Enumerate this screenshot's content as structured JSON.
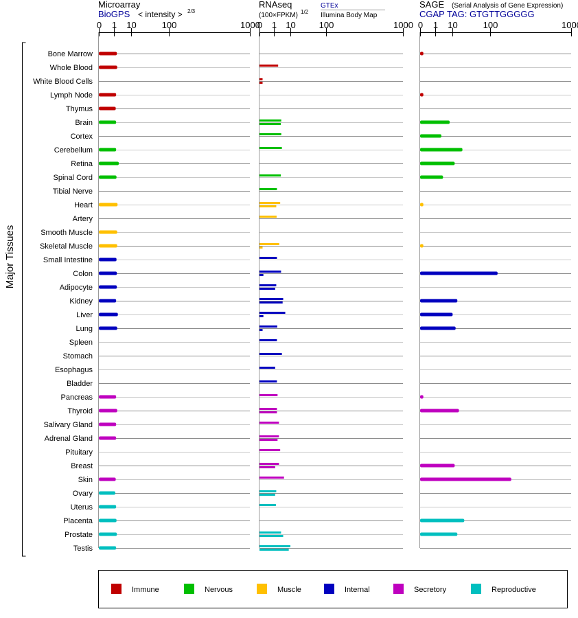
{
  "panels": {
    "microarray": {
      "title": "Microarray",
      "source": "BioGPS",
      "unit_text": "< intensity >",
      "unit_exponent": "2/3",
      "ticks": [
        "0",
        "1",
        "10",
        "100",
        "1000"
      ]
    },
    "rnaseq": {
      "title": "RNAseq",
      "unit_text": "(100×FPKM)",
      "unit_exponent": "1/2",
      "source_1": "GTEx",
      "source_2": "Illumina Body Map",
      "ticks": [
        "0",
        "1",
        "10",
        "100",
        "1000"
      ]
    },
    "sage": {
      "title": "SAGE",
      "subtitle": "(Serial Analysis of Gene Expression)",
      "tag_label": "CGAP TAG: GTGTTGGGGG",
      "ticks": [
        "0",
        "1",
        "10",
        "100",
        "1000"
      ]
    }
  },
  "y_group_label": "Major Tissues",
  "legend": [
    {
      "label": "Immune",
      "color": "#c00000"
    },
    {
      "label": "Nervous",
      "color": "#00bf00"
    },
    {
      "label": "Muscle",
      "color": "#ffc000"
    },
    {
      "label": "Internal",
      "color": "#0000bf"
    },
    {
      "label": "Secretory",
      "color": "#bf00bf"
    },
    {
      "label": "Reproductive",
      "color": "#00bfbf"
    }
  ],
  "chart_data": {
    "type": "bar",
    "orientation": "horizontal",
    "x_scale": "root-scaled (ticks 0, 1, 10, 100, 1000)",
    "categories": [
      "Bone Marrow",
      "Whole Blood",
      "White Blood Cells",
      "Lymph Node",
      "Thymus",
      "Brain",
      "Cortex",
      "Cerebellum",
      "Retina",
      "Spinal Cord",
      "Tibial Nerve",
      "Heart",
      "Artery",
      "Smooth Muscle",
      "Skeletal Muscle",
      "Small Intestine",
      "Colon",
      "Adipocyte",
      "Kidney",
      "Liver",
      "Lung",
      "Spleen",
      "Stomach",
      "Esophagus",
      "Bladder",
      "Pancreas",
      "Thyroid",
      "Salivary Gland",
      "Adrenal Gland",
      "Pituitary",
      "Breast",
      "Skin",
      "Ovary",
      "Uterus",
      "Placenta",
      "Prostate",
      "Testis"
    ],
    "category_groups": [
      "Immune",
      "Immune",
      "Immune",
      "Immune",
      "Immune",
      "Nervous",
      "Nervous",
      "Nervous",
      "Nervous",
      "Nervous",
      "Nervous",
      "Muscle",
      "Muscle",
      "Muscle",
      "Muscle",
      "Internal",
      "Internal",
      "Internal",
      "Internal",
      "Internal",
      "Internal",
      "Internal",
      "Internal",
      "Internal",
      "Internal",
      "Secretory",
      "Secretory",
      "Secretory",
      "Secretory",
      "Secretory",
      "Secretory",
      "Secretory",
      "Reproductive",
      "Reproductive",
      "Reproductive",
      "Reproductive",
      "Reproductive"
    ],
    "microarray": [
      1.7,
      1.8,
      null,
      1.5,
      1.4,
      1.5,
      null,
      1.5,
      2.3,
      1.6,
      null,
      1.9,
      null,
      1.8,
      1.8,
      1.6,
      1.7,
      1.7,
      1.5,
      2.0,
      1.8,
      null,
      null,
      null,
      null,
      1.5,
      1.8,
      1.5,
      1.5,
      null,
      null,
      1.4,
      1.3,
      1.5,
      1.6,
      1.7,
      1.5
    ],
    "rnaseq_gtex": [
      null,
      2.2,
      0.01,
      null,
      null,
      3.5,
      3.5,
      3.8,
      null,
      3.3,
      1.8,
      3.0,
      1.7,
      null,
      2.6,
      1.8,
      3.4,
      1.6,
      4.5,
      5.8,
      1.9,
      1.8,
      3.8,
      1.3,
      1.8,
      2.0,
      1.8,
      2.5,
      2.5,
      3.0,
      2.5,
      5.0,
      1.6,
      1.5,
      null,
      3.4,
      10.0
    ],
    "rnaseq_illumina": [
      null,
      null,
      0.01,
      null,
      null,
      3.3,
      null,
      null,
      null,
      null,
      null,
      1.6,
      null,
      null,
      0.01,
      null,
      0.02,
      1.3,
      4.2,
      0.02,
      0.01,
      null,
      null,
      null,
      null,
      null,
      1.8,
      null,
      2.0,
      null,
      1.3,
      null,
      1.3,
      null,
      null,
      4.5,
      8.5
    ],
    "sage": [
      0.01,
      null,
      null,
      0.01,
      null,
      7.5,
      2.8,
      22.0,
      12.0,
      3.5,
      null,
      0.01,
      null,
      null,
      0.01,
      null,
      135.0,
      null,
      15.0,
      10.0,
      13.0,
      null,
      null,
      null,
      null,
      0.01,
      17.0,
      null,
      null,
      null,
      12.0,
      220.0,
      null,
      null,
      25.0,
      15.0,
      null
    ],
    "xlim": [
      0,
      1000
    ]
  }
}
